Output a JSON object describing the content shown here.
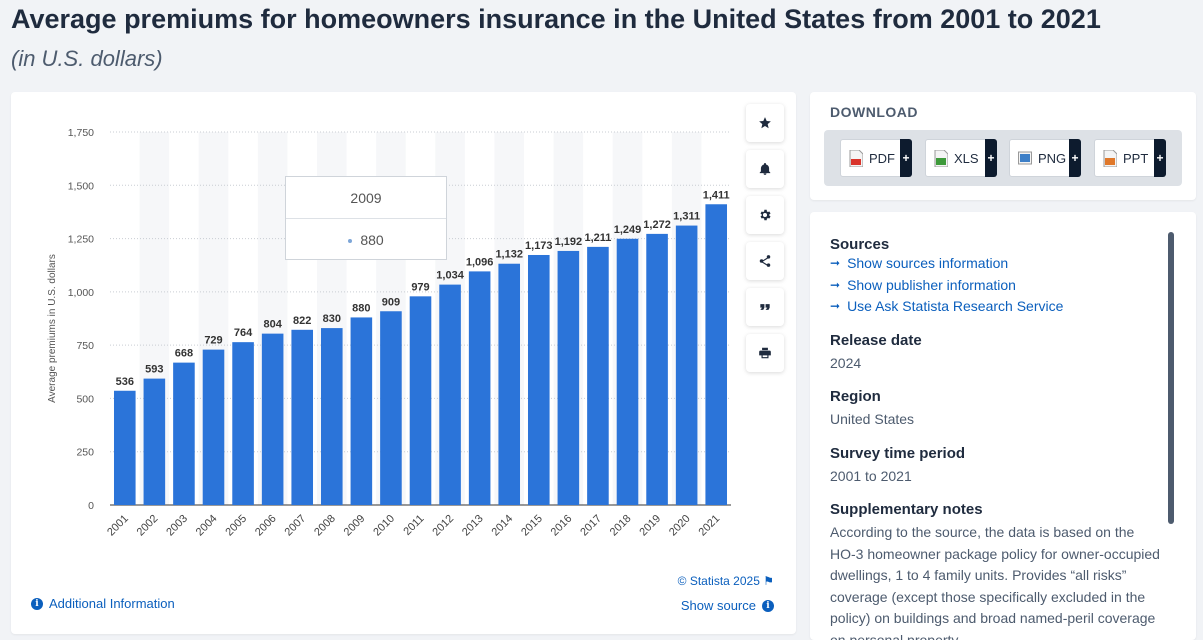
{
  "page": {
    "title": "Average premiums for homeowners insurance in the United States from 2001 to 2021",
    "subtitle": "(in U.S. dollars)"
  },
  "chart_data": {
    "type": "bar",
    "ylabel": "Average premiums in U.S. dollars",
    "categories": [
      "2001",
      "2002",
      "2003",
      "2004",
      "2005",
      "2006",
      "2007",
      "2008",
      "2009",
      "2010",
      "2011",
      "2012",
      "2013",
      "2014",
      "2015",
      "2016",
      "2017",
      "2018",
      "2019",
      "2020",
      "2021"
    ],
    "values": [
      536,
      593,
      668,
      729,
      764,
      804,
      822,
      830,
      880,
      909,
      979,
      1034,
      1096,
      1132,
      1173,
      1192,
      1211,
      1249,
      1272,
      1311,
      1411
    ],
    "data_labels": [
      "536",
      "593",
      "668",
      "729",
      "764",
      "804",
      "822",
      "830",
      "880",
      "909",
      "979",
      "1,034",
      "1,096",
      "1,132",
      "1,173",
      "1,192",
      "1,211",
      "1,249",
      "1,272",
      "1,311",
      "1,411"
    ],
    "ylim": [
      0,
      1750
    ],
    "yticks": [
      0,
      250,
      500,
      750,
      1000,
      1250,
      1500,
      1750
    ],
    "ytick_labels": [
      "0",
      "250",
      "500",
      "750",
      "1,000",
      "1,250",
      "1,500",
      "1,750"
    ],
    "bar_color": "#2b74d9",
    "grid": true,
    "tooltip": {
      "category": "2009",
      "value": "880"
    }
  },
  "chart_footer": {
    "credit": "© Statista 2025",
    "additional_info": "Additional Information",
    "show_source": "Show source"
  },
  "toolbar": {
    "icons": [
      "star-icon",
      "bell-icon",
      "gear-icon",
      "share-icon",
      "quote-icon",
      "print-icon"
    ]
  },
  "download": {
    "heading": "DOWNLOAD",
    "buttons": [
      {
        "label": "PDF",
        "color": "#d9342b"
      },
      {
        "label": "XLS",
        "color": "#3e9a3a"
      },
      {
        "label": "PNG",
        "color": "#3d7fc7"
      },
      {
        "label": "PPT",
        "color": "#e0782a"
      }
    ],
    "plus": "+"
  },
  "info": {
    "sources_heading": "Sources",
    "source_links": [
      "Show sources information",
      "Show publisher information",
      "Use Ask Statista Research Service"
    ],
    "release_heading": "Release date",
    "release_value": "2024",
    "region_heading": "Region",
    "region_value": "United States",
    "survey_heading": "Survey time period",
    "survey_value": "2001 to 2021",
    "notes_heading": "Supplementary notes",
    "notes_value": "According to the source, the data is based on the HO-3 homeowner package policy for owner-occupied dwellings, 1 to 4 family units. Provides “all risks” coverage (except those specifically excluded in the policy) on buildings and broad named-peril coverage on personal property."
  }
}
